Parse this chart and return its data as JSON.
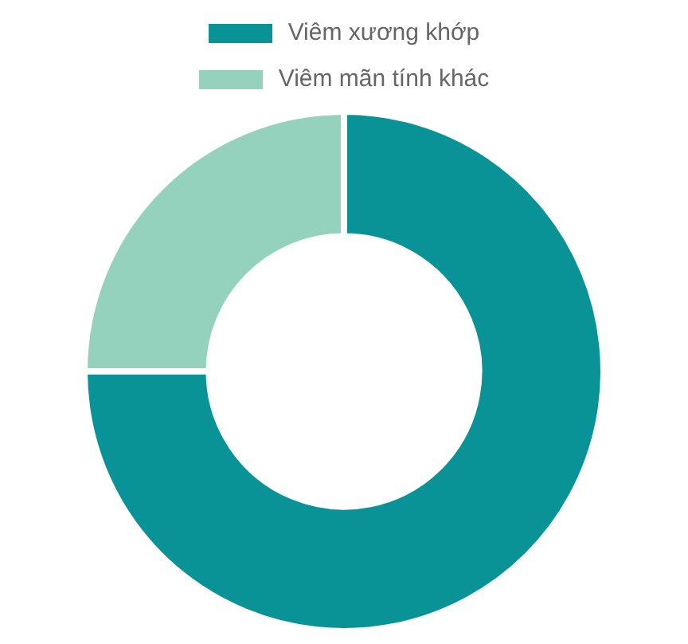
{
  "chart_data": {
    "type": "donut",
    "categories": [
      "Viêm xương khớp",
      "Viêm mãn tính khác"
    ],
    "values": [
      75,
      25
    ],
    "colors": [
      "#0a9396",
      "#94d2bd"
    ],
    "legend": "top"
  }
}
